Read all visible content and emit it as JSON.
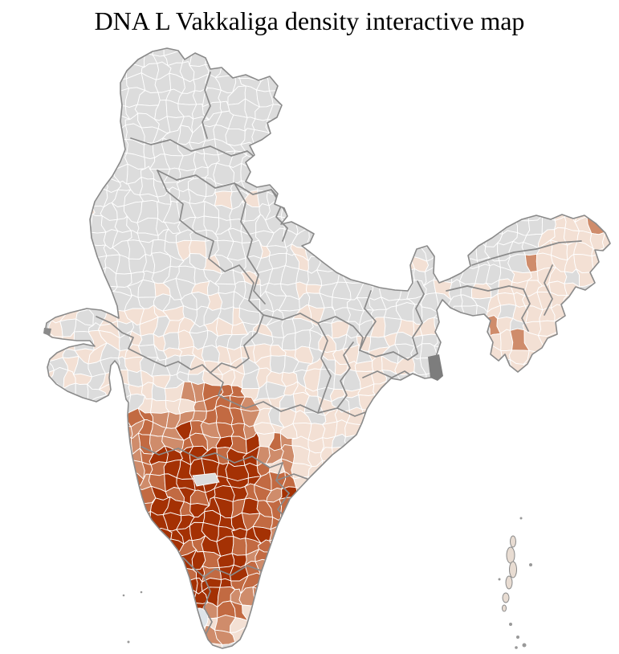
{
  "page": {
    "title": "DNA L Vakkaliga density interactive map"
  },
  "map": {
    "description": "District-level choropleth of India; density is highest in south-western districts (Karnataka) fading outward, with no-data gray districts across northern and north-eastern India",
    "colors": {
      "no_data": "#dcdcdc",
      "low": "#f3e0d4",
      "medium": "#cf8c6b",
      "high": "#c26a42",
      "very_high": "#a43104"
    },
    "borders": {
      "district": "#ffffff",
      "state": "#8a8a8a",
      "country": "#8a8a8a"
    },
    "special": {
      "mangrove_patch": "#7d7d7d",
      "backwater_district": "#dee4e9",
      "island_fill": "#e8dcd2",
      "islet_dot": "#999999"
    },
    "background": "#ffffff"
  }
}
